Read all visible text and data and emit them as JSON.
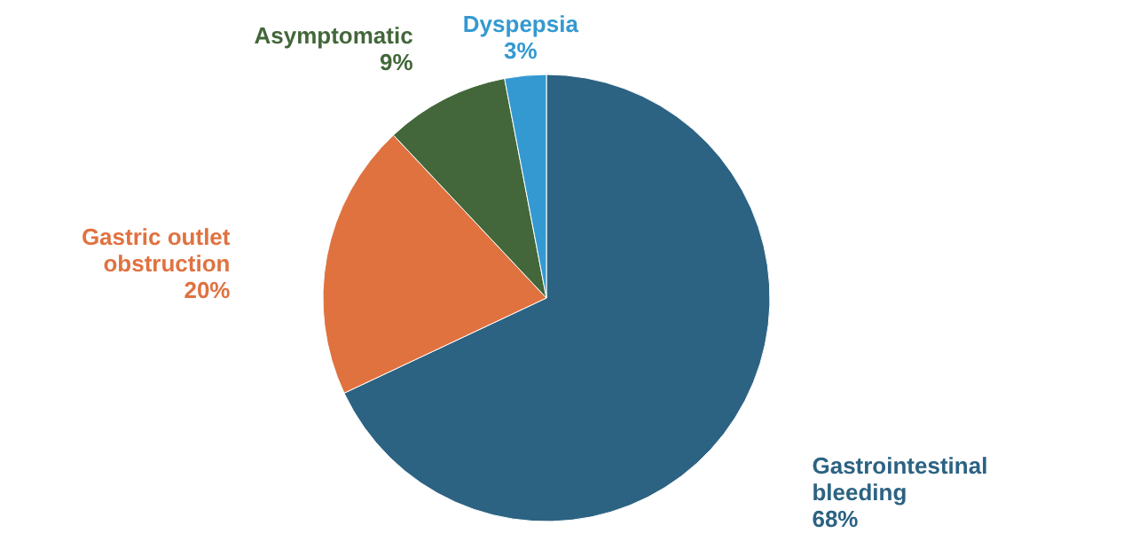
{
  "chart_data": {
    "type": "pie",
    "categories": [
      "Gastrointestinal bleeding",
      "Gastric outlet obstruction",
      "Asymptomatic",
      "Dyspepsia"
    ],
    "values": [
      68,
      20,
      9,
      3
    ],
    "value_labels": [
      "68%",
      "20%",
      "9%",
      "3%"
    ],
    "colors": [
      "#2c6282",
      "#e07240",
      "#43673a",
      "#3499d1"
    ]
  }
}
